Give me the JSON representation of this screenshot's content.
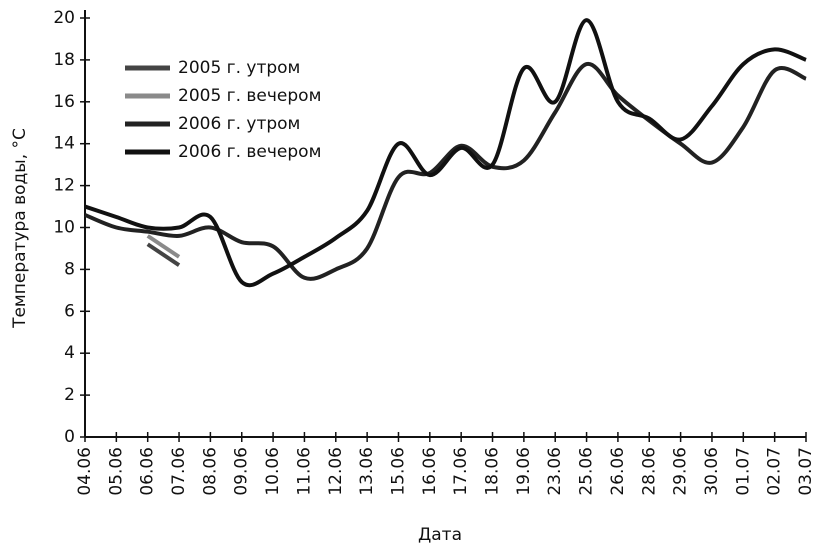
{
  "chart_data": {
    "type": "line",
    "x_label": "Дата",
    "y_label": "Температура воды, °C",
    "categories": [
      "04.06",
      "05.06",
      "06.06",
      "07.06",
      "08.06",
      "09.06",
      "10.06",
      "11.06",
      "12.06",
      "13.06",
      "15.06",
      "16.06",
      "17.06",
      "18.06",
      "19.06",
      "23.06",
      "25.06",
      "26.06",
      "28.06",
      "29.06",
      "30.06",
      "01.07",
      "02.07",
      "03.07"
    ],
    "series": [
      {
        "name": "2005 г. утром",
        "color": "#444444",
        "values": [
          null,
          null,
          9.2,
          8.2,
          null,
          null,
          null,
          null,
          null,
          null,
          null,
          null,
          null,
          null,
          null,
          null,
          null,
          null,
          null,
          null,
          null,
          null,
          null,
          null
        ]
      },
      {
        "name": "2005 г. вечером",
        "color": "#8a8a8a",
        "values": [
          null,
          null,
          9.6,
          8.6,
          null,
          null,
          null,
          null,
          null,
          null,
          null,
          null,
          null,
          null,
          null,
          null,
          null,
          null,
          null,
          null,
          null,
          null,
          null,
          null
        ]
      },
      {
        "name": "2006 г. утром",
        "color": "#222222",
        "values": [
          10.6,
          10.0,
          9.8,
          9.6,
          10.0,
          9.3,
          9.1,
          7.6,
          8.0,
          9.0,
          12.4,
          12.6,
          13.9,
          12.9,
          13.2,
          15.5,
          17.8,
          16.3,
          15.1,
          14.0,
          13.1,
          14.8,
          17.5,
          17.1
        ]
      },
      {
        "name": "2006 г. вечером",
        "color": "#111111",
        "values": [
          11.0,
          10.5,
          10.0,
          10.0,
          10.5,
          7.4,
          7.8,
          8.6,
          9.5,
          10.8,
          14.0,
          12.5,
          13.8,
          13.0,
          17.6,
          16.0,
          19.9,
          16.0,
          15.2,
          14.2,
          15.8,
          17.8,
          18.5,
          18.0
        ]
      }
    ],
    "ylim": [
      0,
      20
    ],
    "yticks": [
      0,
      2,
      4,
      6,
      8,
      10,
      12,
      14,
      16,
      18,
      20
    ],
    "grid": false
  }
}
